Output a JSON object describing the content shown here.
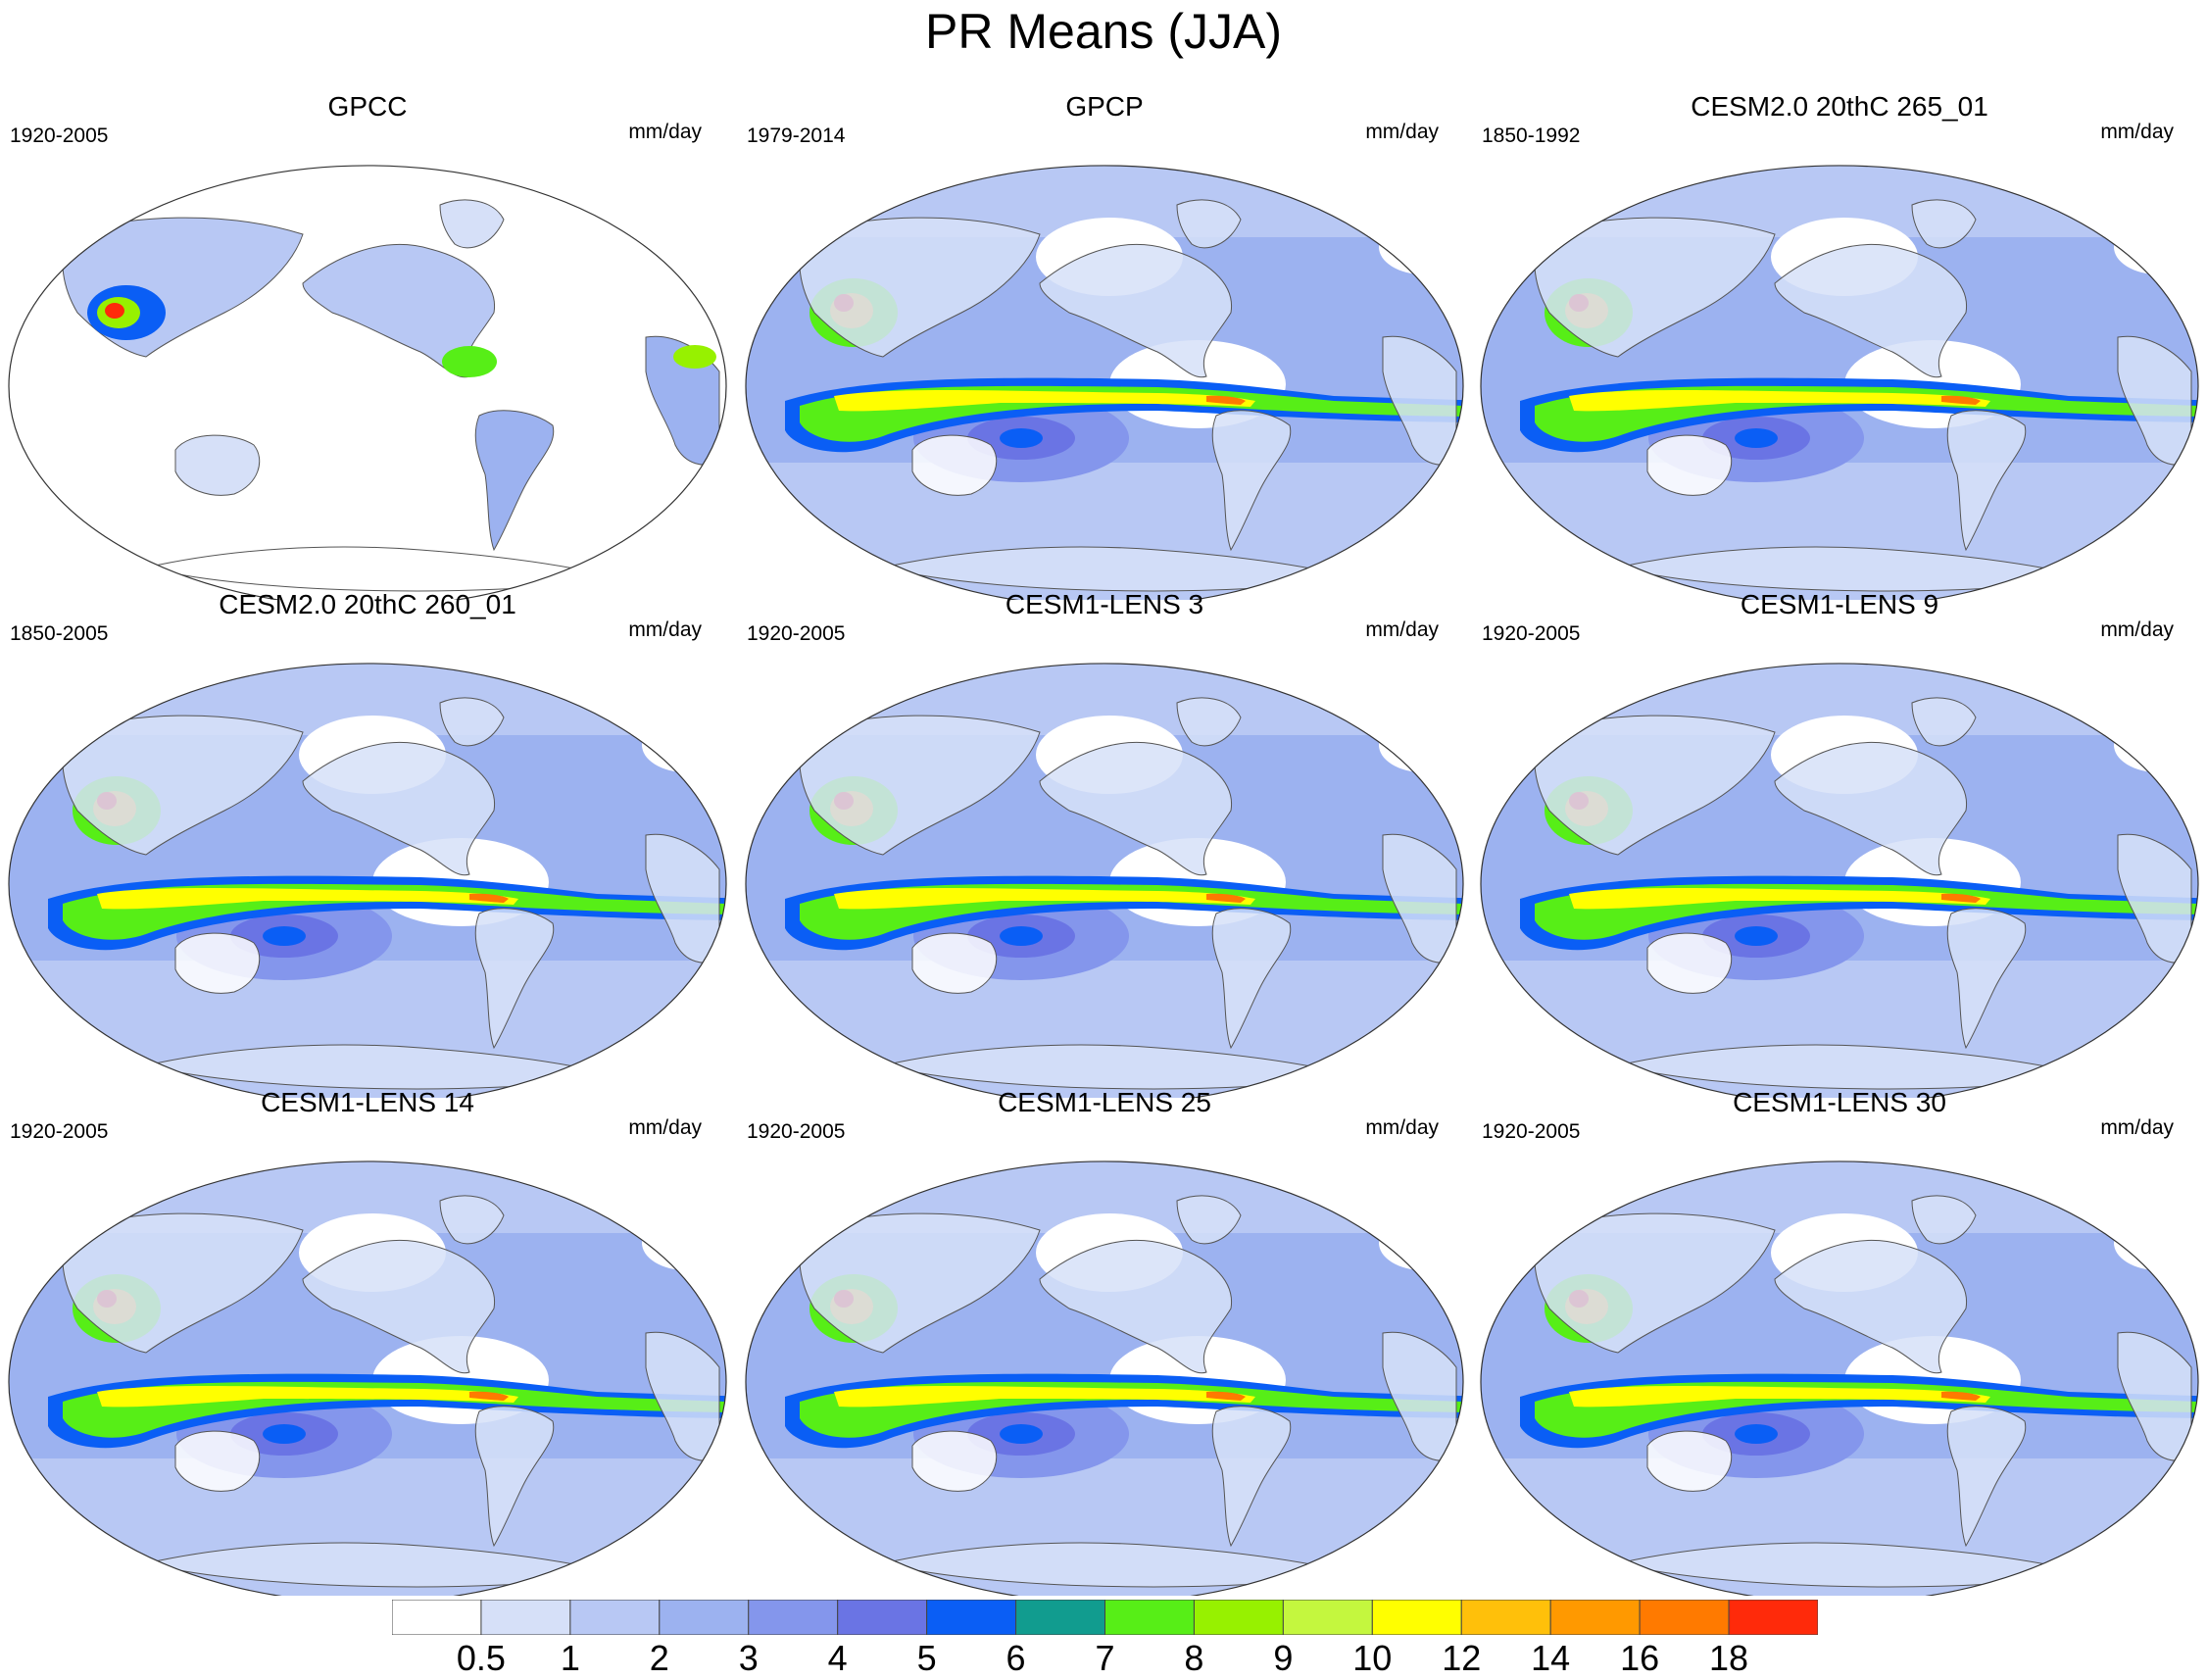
{
  "figure": {
    "title": "PR Means (JJA)"
  },
  "panels": [
    {
      "title": "GPCC",
      "period": "1920-2005",
      "units": "mm/day",
      "land_only": true
    },
    {
      "title": "GPCP",
      "period": "1979-2014",
      "units": "mm/day",
      "land_only": false
    },
    {
      "title": "CESM2.0 20thC 265_01",
      "period": "1850-1992",
      "units": "mm/day",
      "land_only": false
    },
    {
      "title": "CESM2.0 20thC 260_01",
      "period": "1850-2005",
      "units": "mm/day",
      "land_only": false
    },
    {
      "title": "CESM1-LENS 3",
      "period": "1920-2005",
      "units": "mm/day",
      "land_only": false
    },
    {
      "title": "CESM1-LENS 9",
      "period": "1920-2005",
      "units": "mm/day",
      "land_only": false
    },
    {
      "title": "CESM1-LENS 14",
      "period": "1920-2005",
      "units": "mm/day",
      "land_only": false
    },
    {
      "title": "CESM1-LENS 25",
      "period": "1920-2005",
      "units": "mm/day",
      "land_only": false
    },
    {
      "title": "CESM1-LENS 30",
      "period": "1920-2005",
      "units": "mm/day",
      "land_only": false
    }
  ],
  "colorbar": {
    "levels": [
      "0.5",
      "1",
      "2",
      "3",
      "4",
      "5",
      "6",
      "7",
      "8",
      "9",
      "10",
      "12",
      "14",
      "16",
      "18"
    ],
    "colors": [
      "#ffffff",
      "#d6e0f8",
      "#b8c8f4",
      "#9cb2f0",
      "#8496ec",
      "#6a74e4",
      "#0a5ef5",
      "#119c8f",
      "#57ee17",
      "#97f100",
      "#c4f73e",
      "#ffff00",
      "#ffc00a",
      "#ff9900",
      "#ff7a00",
      "#ff2a0a"
    ]
  }
}
